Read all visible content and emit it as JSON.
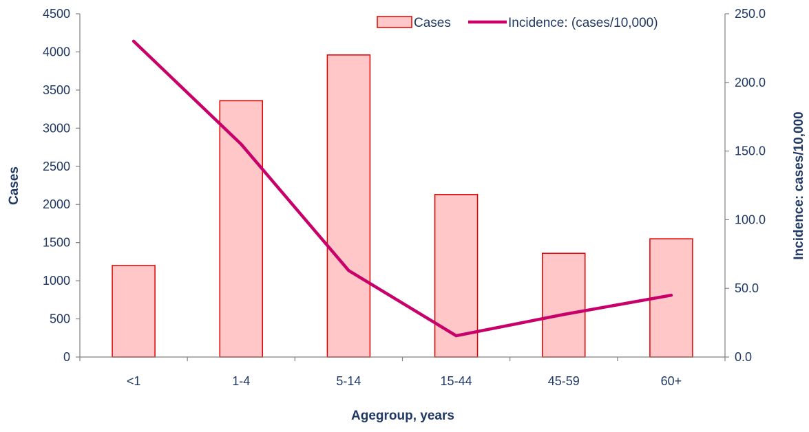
{
  "chart_data": {
    "type": "bar",
    "categories": [
      "<1",
      "1-4",
      "5-14",
      "15-44",
      "45-59",
      "60+"
    ],
    "series": [
      {
        "name": "Cases",
        "type": "bar",
        "axis": "left",
        "values": [
          1200,
          3360,
          3960,
          2130,
          1360,
          1550
        ]
      },
      {
        "name": "Incidence: (cases/10,000)",
        "type": "line",
        "axis": "right",
        "values": [
          230.0,
          155.0,
          63.0,
          15.5,
          31.0,
          45.0
        ]
      }
    ],
    "xlabel": "Agegroup, years",
    "ylabel": "Cases",
    "y2label": "Incidence: cases/10,000",
    "ylim": [
      0,
      4500
    ],
    "yticks": [
      "0",
      "500",
      "1000",
      "1500",
      "2000",
      "2500",
      "3000",
      "3500",
      "4000",
      "4500"
    ],
    "y2lim": [
      0,
      250
    ],
    "y2ticks": [
      "0.0",
      "50.0",
      "100.0",
      "150.0",
      "200.0",
      "250.0"
    ],
    "grid": false,
    "legend_position": "top-right",
    "colors": {
      "bar_fill": "#ffc7c7",
      "bar_stroke": "#e00000",
      "line": "#c8006a",
      "axis": "#808080",
      "text": "#1f3864"
    }
  }
}
